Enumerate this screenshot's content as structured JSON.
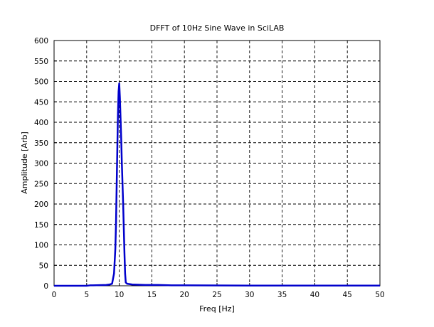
{
  "chart_data": {
    "type": "line",
    "title": "DFFT of 10Hz Sine Wave in SciLAB",
    "xlabel": "Freq [Hz]",
    "ylabel": "Amplitude [Arb]",
    "xlim": [
      0,
      50
    ],
    "ylim": [
      0,
      600
    ],
    "xticks": [
      0,
      5,
      10,
      15,
      20,
      25,
      30,
      35,
      40,
      45,
      50
    ],
    "yticks": [
      0,
      50,
      100,
      150,
      200,
      250,
      300,
      350,
      400,
      450,
      500,
      550,
      600
    ],
    "grid": true,
    "line_color": "#0000cc",
    "series": [
      {
        "x": [
          0,
          5,
          5.5,
          6,
          7,
          8,
          8.5,
          8.9,
          9.2,
          9.4,
          9.5,
          9.6,
          9.7,
          9.8,
          9.9,
          10.0,
          10.1,
          10.2,
          10.3,
          10.4,
          10.5,
          10.6,
          10.7,
          10.8,
          10.9,
          11.0,
          11.2,
          12,
          14,
          16,
          17,
          18,
          20,
          30,
          40,
          50
        ],
        "y": [
          0,
          0,
          1,
          1,
          1.5,
          2,
          3,
          5,
          30,
          90,
          150,
          240,
          330,
          420,
          475,
          495,
          460,
          410,
          360,
          300,
          250,
          200,
          140,
          80,
          30,
          8,
          5,
          3,
          2,
          2,
          1.5,
          1,
          1,
          0.5,
          0.5,
          0.5
        ]
      }
    ]
  }
}
